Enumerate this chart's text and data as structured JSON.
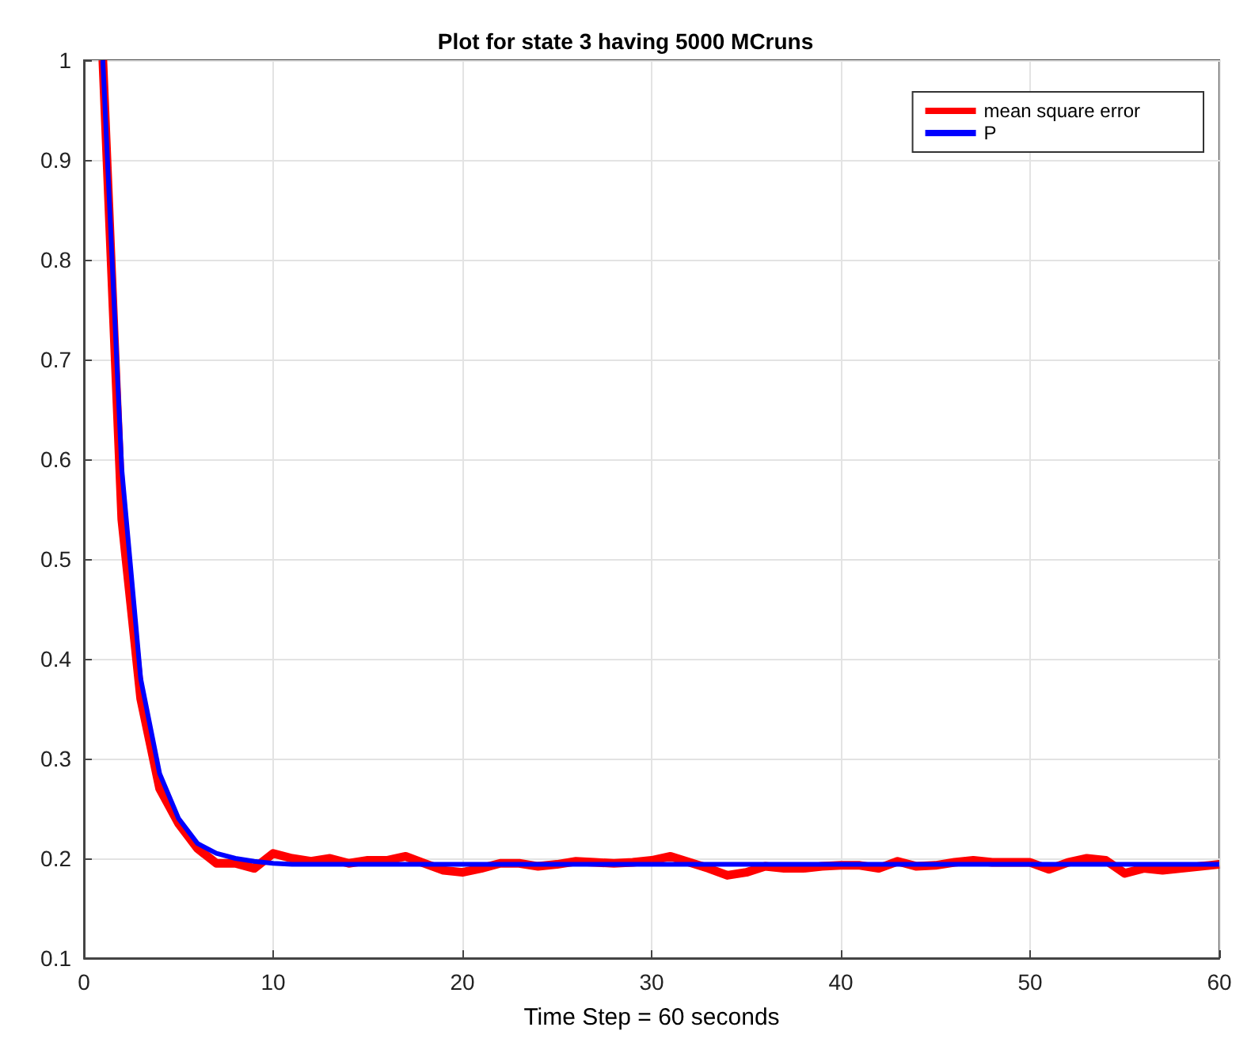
{
  "chart_data": {
    "type": "line",
    "title": "Plot for state 3 having 5000 MCruns",
    "xlabel": "Time Step = 60 seconds",
    "x": [
      1,
      2,
      3,
      4,
      5,
      6,
      7,
      8,
      9,
      10,
      11,
      12,
      13,
      14,
      15,
      16,
      17,
      18,
      19,
      20,
      21,
      22,
      23,
      24,
      25,
      26,
      27,
      28,
      29,
      30,
      31,
      32,
      33,
      34,
      35,
      36,
      37,
      38,
      39,
      40,
      41,
      42,
      43,
      44,
      45,
      46,
      47,
      48,
      49,
      50,
      51,
      52,
      53,
      54,
      55,
      56,
      57,
      58,
      59,
      60
    ],
    "series": [
      {
        "name": "mean square error",
        "color": "#ff0000",
        "values": [
          1,
          0.54,
          0.36,
          0.27,
          0.235,
          0.21,
          0.195,
          0.195,
          0.19,
          0.205,
          0.2,
          0.197,
          0.2,
          0.195,
          0.198,
          0.198,
          0.202,
          0.195,
          0.188,
          0.186,
          0.19,
          0.195,
          0.195,
          0.192,
          0.194,
          0.197,
          0.196,
          0.195,
          0.196,
          0.198,
          0.202,
          0.196,
          0.19,
          0.183,
          0.186,
          0.192,
          0.19,
          0.19,
          0.192,
          0.193,
          0.193,
          0.19,
          0.197,
          0.192,
          0.193,
          0.196,
          0.198,
          0.196,
          0.196,
          0.196,
          0.189,
          0.196,
          0.2,
          0.198,
          0.185,
          0.19,
          0.188,
          0.19,
          0.192,
          0.194
        ]
      },
      {
        "name": "P",
        "color": "#0000ff",
        "values": [
          1,
          0.59,
          0.38,
          0.285,
          0.24,
          0.215,
          0.205,
          0.2,
          0.197,
          0.195,
          0.194,
          0.194,
          0.194,
          0.194,
          0.194,
          0.194,
          0.194,
          0.194,
          0.194,
          0.194,
          0.194,
          0.194,
          0.194,
          0.194,
          0.194,
          0.194,
          0.194,
          0.194,
          0.194,
          0.194,
          0.194,
          0.194,
          0.194,
          0.194,
          0.194,
          0.194,
          0.194,
          0.194,
          0.194,
          0.194,
          0.194,
          0.194,
          0.194,
          0.194,
          0.194,
          0.194,
          0.194,
          0.194,
          0.194,
          0.194,
          0.194,
          0.194,
          0.194,
          0.194,
          0.194,
          0.194,
          0.194,
          0.194,
          0.194,
          0.194
        ]
      }
    ],
    "xlim": [
      0,
      60
    ],
    "xticks": [
      0,
      10,
      20,
      30,
      40,
      50,
      60
    ],
    "ylim": [
      0.1,
      1
    ],
    "yticks": [
      0.1,
      0.2,
      0.3,
      0.4,
      0.5,
      0.6,
      0.7,
      0.8,
      0.9,
      1
    ],
    "grid": true,
    "legend": "top right",
    "marker": "none",
    "line_style": "solid"
  }
}
